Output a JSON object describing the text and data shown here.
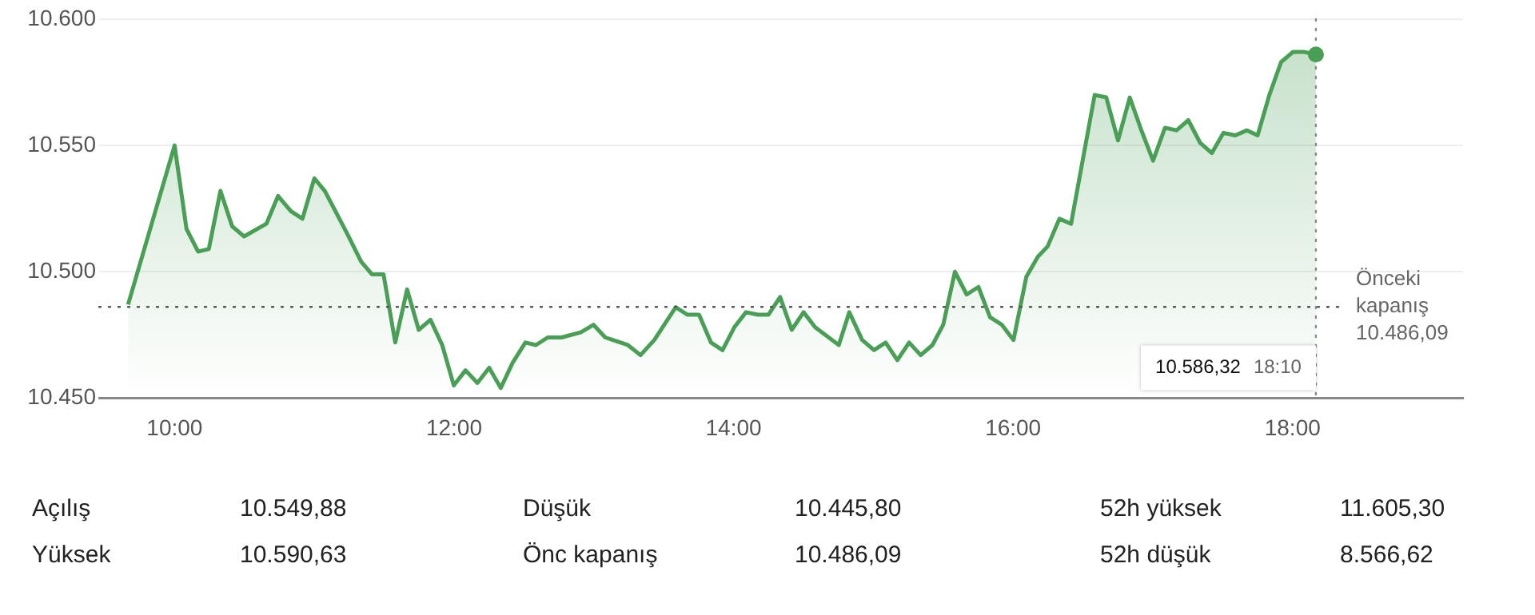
{
  "chart_data": {
    "type": "area",
    "x": [
      9.667,
      10.0,
      10.085,
      10.168,
      10.245,
      10.328,
      10.412,
      10.497,
      10.657,
      10.74,
      10.832,
      10.915,
      11.0,
      11.075,
      11.236,
      11.335,
      11.412,
      11.495,
      11.579,
      11.664,
      11.747,
      11.831,
      11.915,
      11.998,
      12.082,
      12.167,
      12.251,
      12.334,
      12.419,
      12.51,
      12.586,
      12.67,
      12.769,
      12.906,
      12.998,
      13.082,
      13.243,
      13.334,
      13.433,
      13.586,
      13.669,
      13.753,
      13.838,
      13.921,
      14.005,
      14.089,
      14.173,
      14.249,
      14.333,
      14.416,
      14.501,
      14.584,
      14.753,
      14.828,
      14.92,
      15.005,
      15.088,
      15.172,
      15.256,
      15.339,
      15.423,
      15.5,
      15.584,
      15.668,
      15.752,
      15.835,
      15.92,
      16.003,
      16.095,
      16.178,
      16.247,
      16.332,
      16.415,
      16.584,
      16.667,
      16.751,
      16.835,
      16.918,
      17.002,
      17.087,
      17.17,
      17.254,
      17.339,
      17.422,
      17.506,
      17.59,
      17.674,
      17.75,
      17.834,
      17.918,
      18.002,
      18.085,
      18.167
    ],
    "series": [
      {
        "color": "#4a9f57",
        "values": [
          10487,
          10550,
          10517,
          10508,
          10509,
          10532,
          10518,
          10514,
          10519,
          10530,
          10524,
          10521,
          10537,
          10532,
          10515,
          10504,
          10499,
          10499,
          10472,
          10493,
          10477,
          10481,
          10471,
          10455,
          10461,
          10456,
          10462,
          10454,
          10464,
          10472,
          10471,
          10474,
          10474,
          10476,
          10479,
          10474,
          10471,
          10467,
          10473,
          10486,
          10483,
          10483,
          10472,
          10469,
          10478,
          10484,
          10483,
          10483,
          10490,
          10477,
          10484,
          10478,
          10471,
          10484,
          10473,
          10469,
          10472,
          10465,
          10472,
          10467,
          10471,
          10479,
          10500,
          10491,
          10494,
          10482,
          10479,
          10473,
          10498,
          10506,
          10510,
          10521,
          10519,
          10570,
          10569,
          10552,
          10569,
          10556,
          10544,
          10557,
          10556,
          10560,
          10551,
          10547,
          10555,
          10554,
          10556,
          10554,
          10570,
          10583,
          10587,
          10587,
          10586
        ]
      }
    ],
    "xlim": [
      9.46,
      19.22
    ],
    "ylim": [
      10450,
      10600
    ],
    "xticks": [
      {
        "value": 10,
        "label": "10:00"
      },
      {
        "value": 12,
        "label": "12:00"
      },
      {
        "value": 14,
        "label": "14:00"
      },
      {
        "value": 16,
        "label": "16:00"
      },
      {
        "value": 18,
        "label": "18:00"
      }
    ],
    "yticks": [
      {
        "value": 10450,
        "label": "10.450"
      },
      {
        "value": 10500,
        "label": "10.500"
      },
      {
        "value": 10550,
        "label": "10.550"
      },
      {
        "value": 10600,
        "label": "10.600"
      }
    ],
    "grid": "y",
    "legend": false,
    "marker": "none",
    "line_style": "solid",
    "ref_lines": [
      {
        "axis": "y",
        "value": 10486.09,
        "label": "Önceki kapanış 10.486,09",
        "line_style": "dotted",
        "color": "#555555"
      },
      {
        "axis": "x",
        "value": 18.167,
        "line_style": "dotted",
        "color": "#888888"
      }
    ],
    "annotations": [
      "10.586,32 18:10",
      "Açılış",
      "10.549,88",
      "Düşük",
      "10.445,80",
      "52h yüksek",
      "11.605,30",
      "Yüksek",
      "10.590,63",
      "Önc kapanış",
      "10.486,09",
      "52h düşük",
      "8.566,62"
    ]
  }
}
